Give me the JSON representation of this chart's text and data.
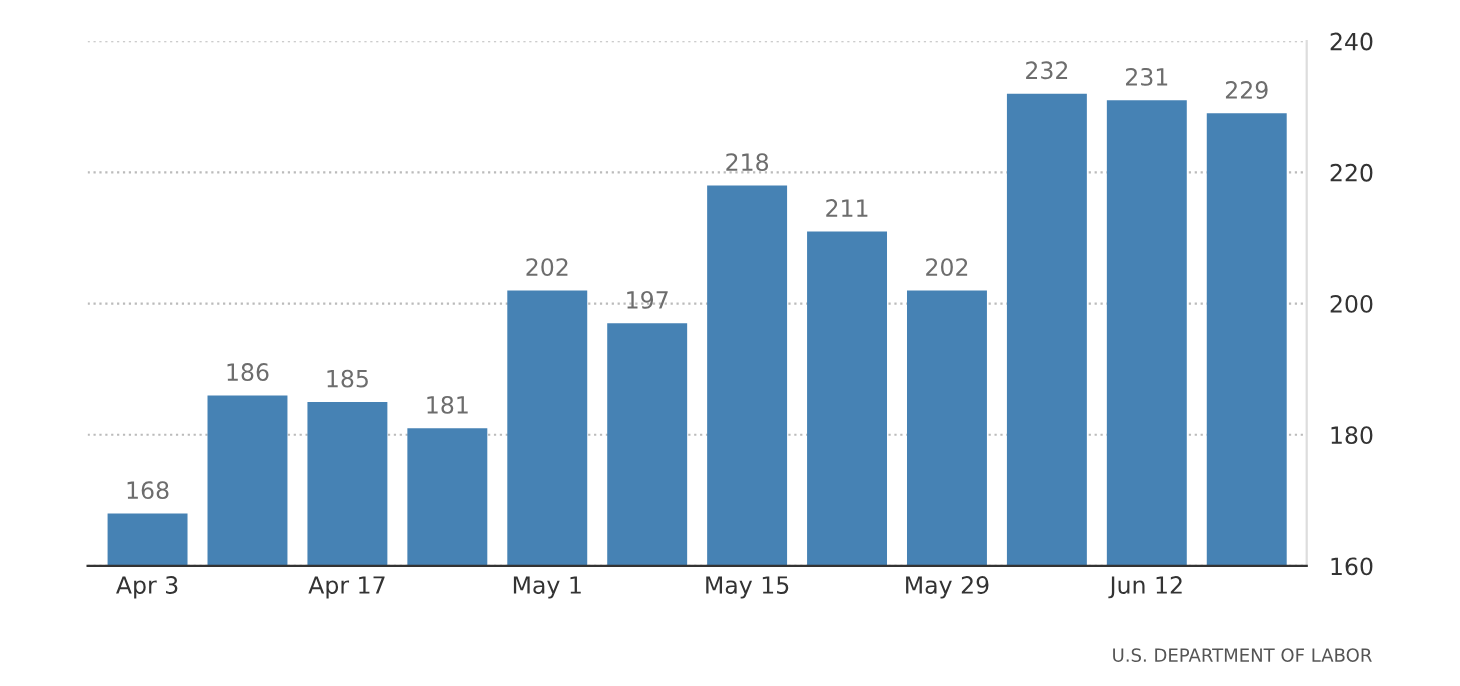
{
  "chart_data": {
    "type": "bar",
    "categories": [
      "Apr 3",
      null,
      "Apr 17",
      null,
      "May 1",
      null,
      "May 15",
      null,
      "May 29",
      null,
      "Jun 12",
      null
    ],
    "values": [
      168,
      186,
      185,
      181,
      202,
      197,
      218,
      211,
      202,
      232,
      231,
      229
    ],
    "color": "#4682b4",
    "ylim": [
      160,
      240
    ],
    "yticks": [
      160,
      180,
      200,
      220,
      240
    ],
    "grid": "y",
    "data_labels": true,
    "annotations": [
      "U.S. DEPARTMENT OF LABOR"
    ]
  }
}
